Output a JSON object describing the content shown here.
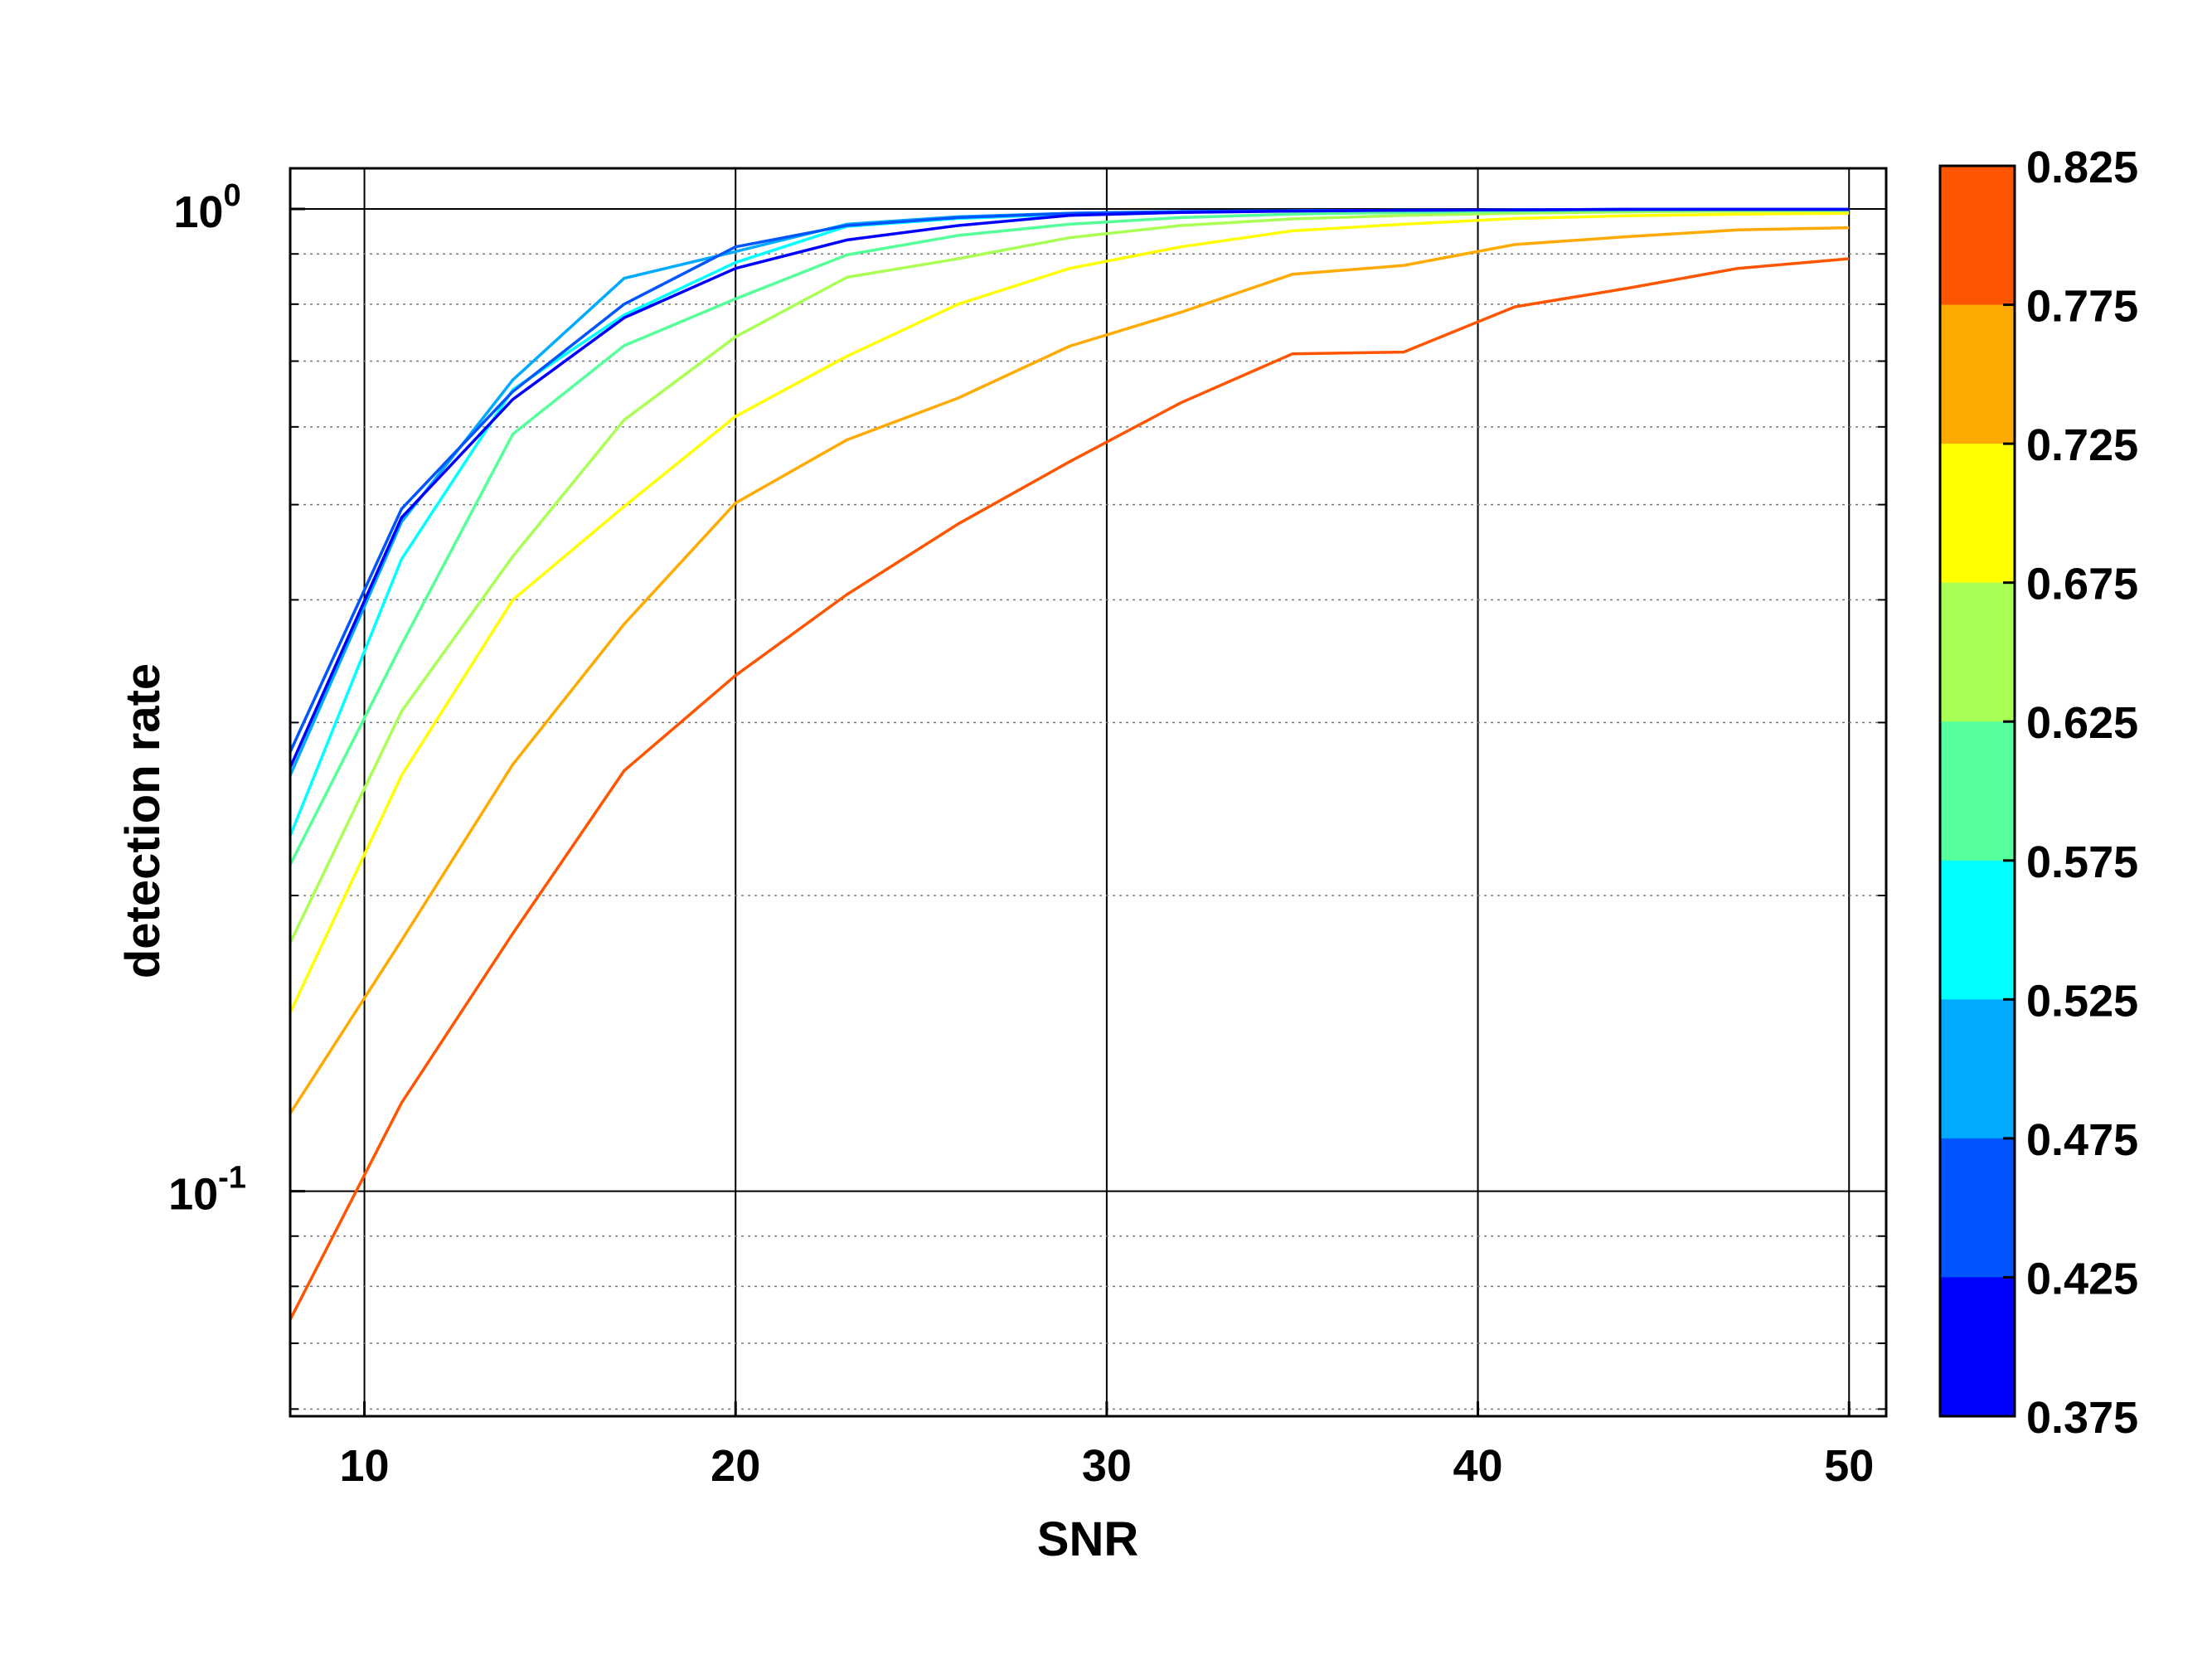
{
  "chart_data": {
    "type": "line",
    "xlabel": "SNR",
    "ylabel": "detection rate",
    "yscale": "log",
    "xlim": [
      8,
      51
    ],
    "ylim": [
      0.059,
      1.1
    ],
    "x_ticks": [
      10,
      20,
      30,
      40,
      50
    ],
    "y_ticks": [
      {
        "value": 1,
        "base": "10",
        "exp": "0"
      },
      {
        "value": 0.1,
        "base": "10",
        "exp": "-1"
      }
    ],
    "grid": true,
    "colorbar": {
      "labels": [
        "0.825",
        "0.775",
        "0.725",
        "0.675",
        "0.625",
        "0.575",
        "0.525",
        "0.475",
        "0.425",
        "0.375"
      ],
      "colors": [
        "#ff5500",
        "#ffaa00",
        "#ffff00",
        "#aaff55",
        "#55ff99",
        "#00ffff",
        "#00aaff",
        "#0055ff",
        "#0000ff"
      ]
    },
    "x": [
      8,
      11,
      14,
      17,
      20,
      23,
      26,
      29,
      32,
      35,
      38,
      41,
      44,
      47,
      50
    ],
    "series": [
      {
        "color": "#ff5500",
        "values": [
          0.074,
          0.123,
          0.183,
          0.268,
          0.335,
          0.405,
          0.478,
          0.553,
          0.635,
          0.712,
          0.715,
          0.795,
          0.83,
          0.87,
          0.89
        ]
      },
      {
        "color": "#ffaa00",
        "values": [
          0.12,
          0.18,
          0.272,
          0.378,
          0.502,
          0.582,
          0.642,
          0.725,
          0.785,
          0.858,
          0.876,
          0.92,
          0.937,
          0.952,
          0.957
        ]
      },
      {
        "color": "#ffff00",
        "values": [
          0.152,
          0.265,
          0.4,
          0.498,
          0.615,
          0.708,
          0.8,
          0.87,
          0.915,
          0.95,
          0.965,
          0.978,
          0.984,
          0.988,
          0.99
        ]
      },
      {
        "color": "#aaff55",
        "values": [
          0.179,
          0.308,
          0.443,
          0.61,
          0.741,
          0.852,
          0.89,
          0.935,
          0.962,
          0.977,
          0.985,
          0.99,
          0.993,
          0.995,
          0.996
        ]
      },
      {
        "color": "#55ff99",
        "values": [
          0.215,
          0.36,
          0.59,
          0.726,
          0.81,
          0.898,
          0.94,
          0.965,
          0.98,
          0.988,
          0.992,
          0.995,
          0.997,
          0.998,
          0.998
        ]
      },
      {
        "color": "#00ffff",
        "values": [
          0.23,
          0.44,
          0.655,
          0.78,
          0.882,
          0.96,
          0.978,
          0.988,
          0.993,
          0.996,
          0.997,
          0.998,
          0.999,
          0.999,
          0.999
        ]
      },
      {
        "color": "#00aaff",
        "values": [
          0.265,
          0.48,
          0.67,
          0.85,
          0.905,
          0.965,
          0.982,
          0.99,
          0.994,
          0.996,
          0.997,
          0.998,
          0.999,
          0.999,
          0.999
        ]
      },
      {
        "color": "#0055ff",
        "values": [
          0.28,
          0.495,
          0.652,
          0.8,
          0.915,
          0.962,
          0.98,
          0.99,
          0.994,
          0.996,
          0.997,
          0.998,
          0.999,
          0.999,
          0.999
        ]
      },
      {
        "color": "#0000ff",
        "values": [
          0.27,
          0.485,
          0.64,
          0.775,
          0.87,
          0.93,
          0.962,
          0.985,
          0.992,
          0.995,
          0.997,
          0.998,
          0.999,
          0.999,
          0.999
        ]
      }
    ]
  }
}
